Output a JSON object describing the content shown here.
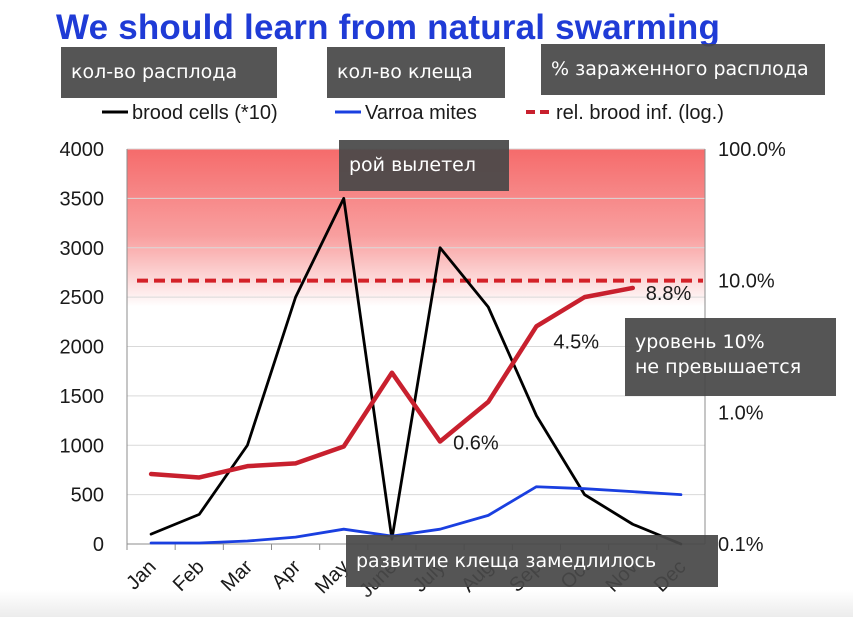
{
  "slide": {
    "title": "We should learn from natural swarming"
  },
  "overlays": {
    "brood_count": "кол-во расплода",
    "mite_count": "кол-во клеща",
    "infected_brood": "% зараженного расплода",
    "swarm_left": "рой вылетел",
    "level_line1": "уровень 10%",
    "level_line2": "не превышается",
    "mite_slowdown": "развитие клеща замедлилось"
  },
  "chart_data": {
    "type": "line",
    "categories": [
      "Jan",
      "Feb",
      "Mar",
      "Apr",
      "May",
      "June",
      "July",
      "Aug",
      "Sep",
      "Oct",
      "Nov",
      "Dec"
    ],
    "ylim": [
      0,
      4000
    ],
    "yticks": [
      "0",
      "500",
      "1000",
      "1500",
      "2000",
      "2500",
      "3000",
      "3500",
      "4000"
    ],
    "y2lim_log": [
      0.1,
      100
    ],
    "y2ticks": [
      "0.1%",
      "1.0%",
      "10.0%",
      "100.0%"
    ],
    "threshold_band": "10% to 100%",
    "colors": {
      "brood": "#000000",
      "mites": "#1a3fe0",
      "infestation": "#c8202e",
      "threshold": "#d42128",
      "band": "#f56b6b"
    },
    "series": [
      {
        "name": "brood cells (*10)",
        "axis": "left",
        "values": [
          100,
          300,
          1000,
          2500,
          3500,
          50,
          3000,
          2400,
          1300,
          500,
          200,
          0
        ]
      },
      {
        "name": "Varroa mites",
        "axis": "left",
        "values": [
          10,
          10,
          30,
          70,
          150,
          80,
          150,
          290,
          580,
          560,
          530,
          500
        ]
      },
      {
        "name": "rel. brood inf. (log.)",
        "axis": "right",
        "values": [
          0.34,
          0.32,
          0.39,
          0.41,
          0.55,
          2.0,
          0.6,
          1.2,
          4.5,
          7.5,
          8.8,
          null
        ]
      }
    ],
    "threshold": {
      "value": 10.0
    },
    "annotations": [
      {
        "text": "0.6%",
        "month": "July",
        "value": 0.6
      },
      {
        "text": "4.5%",
        "month": "Sep",
        "value": 4.5
      },
      {
        "text": "8.8%",
        "month": "Nov",
        "value": 8.8
      }
    ]
  }
}
